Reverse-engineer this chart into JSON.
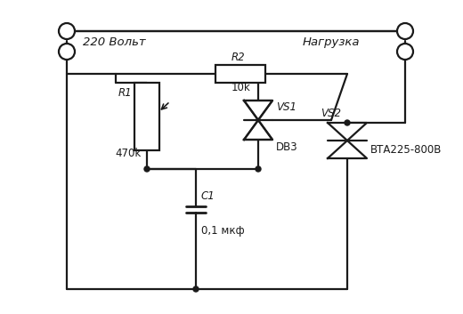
{
  "bg_color": "#ffffff",
  "line_color": "#1a1a1a",
  "text_color": "#1a1a1a",
  "components": {
    "label_220": "220 Вольт",
    "label_load": "Нагрузка",
    "label_R1": "R1",
    "label_R1_val": "470k",
    "label_R2": "R2",
    "label_R2_val": "10k",
    "label_C1": "C1",
    "label_C1_val": "0,1 мкф",
    "label_VS1": "VS1",
    "label_VS1_val": "DB3",
    "label_VS2": "VS2",
    "label_VS2_val": "ВТА225-800В"
  }
}
